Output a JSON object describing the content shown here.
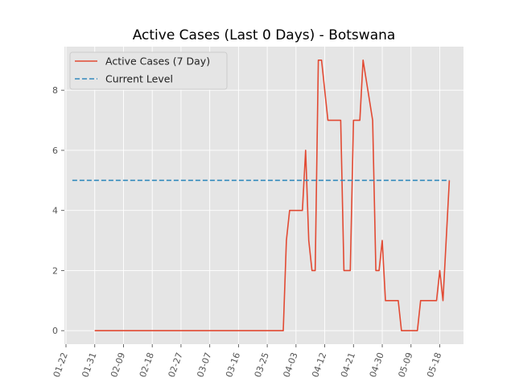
{
  "chart_data": {
    "type": "line",
    "title": "Active Cases (Last 0 Days) - Botswana",
    "xlabel": "",
    "ylabel": "",
    "x_tick_labels": [
      "01-22",
      "01-31",
      "02-09",
      "02-18",
      "02-27",
      "03-07",
      "03-16",
      "03-25",
      "04-03",
      "04-12",
      "04-21",
      "04-30",
      "05-09",
      "05-18"
    ],
    "y_ticks": [
      0,
      2,
      4,
      6,
      8
    ],
    "ylim": [
      -0.45,
      9.45
    ],
    "x_start": "2020-01-22",
    "grid": true,
    "legend_position": "top-left",
    "series": [
      {
        "name": "Active Cases (7 Day)",
        "color": "#E24A33",
        "style": "solid",
        "x": [
          "2020-01-31",
          "2020-03-30",
          "2020-03-31",
          "2020-04-01",
          "2020-04-05",
          "2020-04-06",
          "2020-04-07",
          "2020-04-08",
          "2020-04-09",
          "2020-04-10",
          "2020-04-11",
          "2020-04-13",
          "2020-04-14",
          "2020-04-17",
          "2020-04-18",
          "2020-04-20",
          "2020-04-21",
          "2020-04-23",
          "2020-04-24",
          "2020-04-27",
          "2020-04-28",
          "2020-04-29",
          "2020-04-30",
          "2020-05-01",
          "2020-05-05",
          "2020-05-06",
          "2020-05-11",
          "2020-05-12",
          "2020-05-17",
          "2020-05-18",
          "2020-05-19",
          "2020-05-21"
        ],
        "y": [
          0,
          0,
          3,
          4,
          4,
          6,
          3,
          2,
          2,
          9,
          9,
          7,
          7,
          7,
          2,
          2,
          7,
          7,
          9,
          7,
          2,
          2,
          3,
          1,
          1,
          0,
          0,
          1,
          1,
          2,
          1,
          5
        ]
      },
      {
        "name": "Current Level",
        "color": "#348ABD",
        "style": "dashed",
        "x": [
          "2020-01-24",
          "2020-05-21"
        ],
        "y": [
          5,
          5
        ]
      }
    ]
  }
}
